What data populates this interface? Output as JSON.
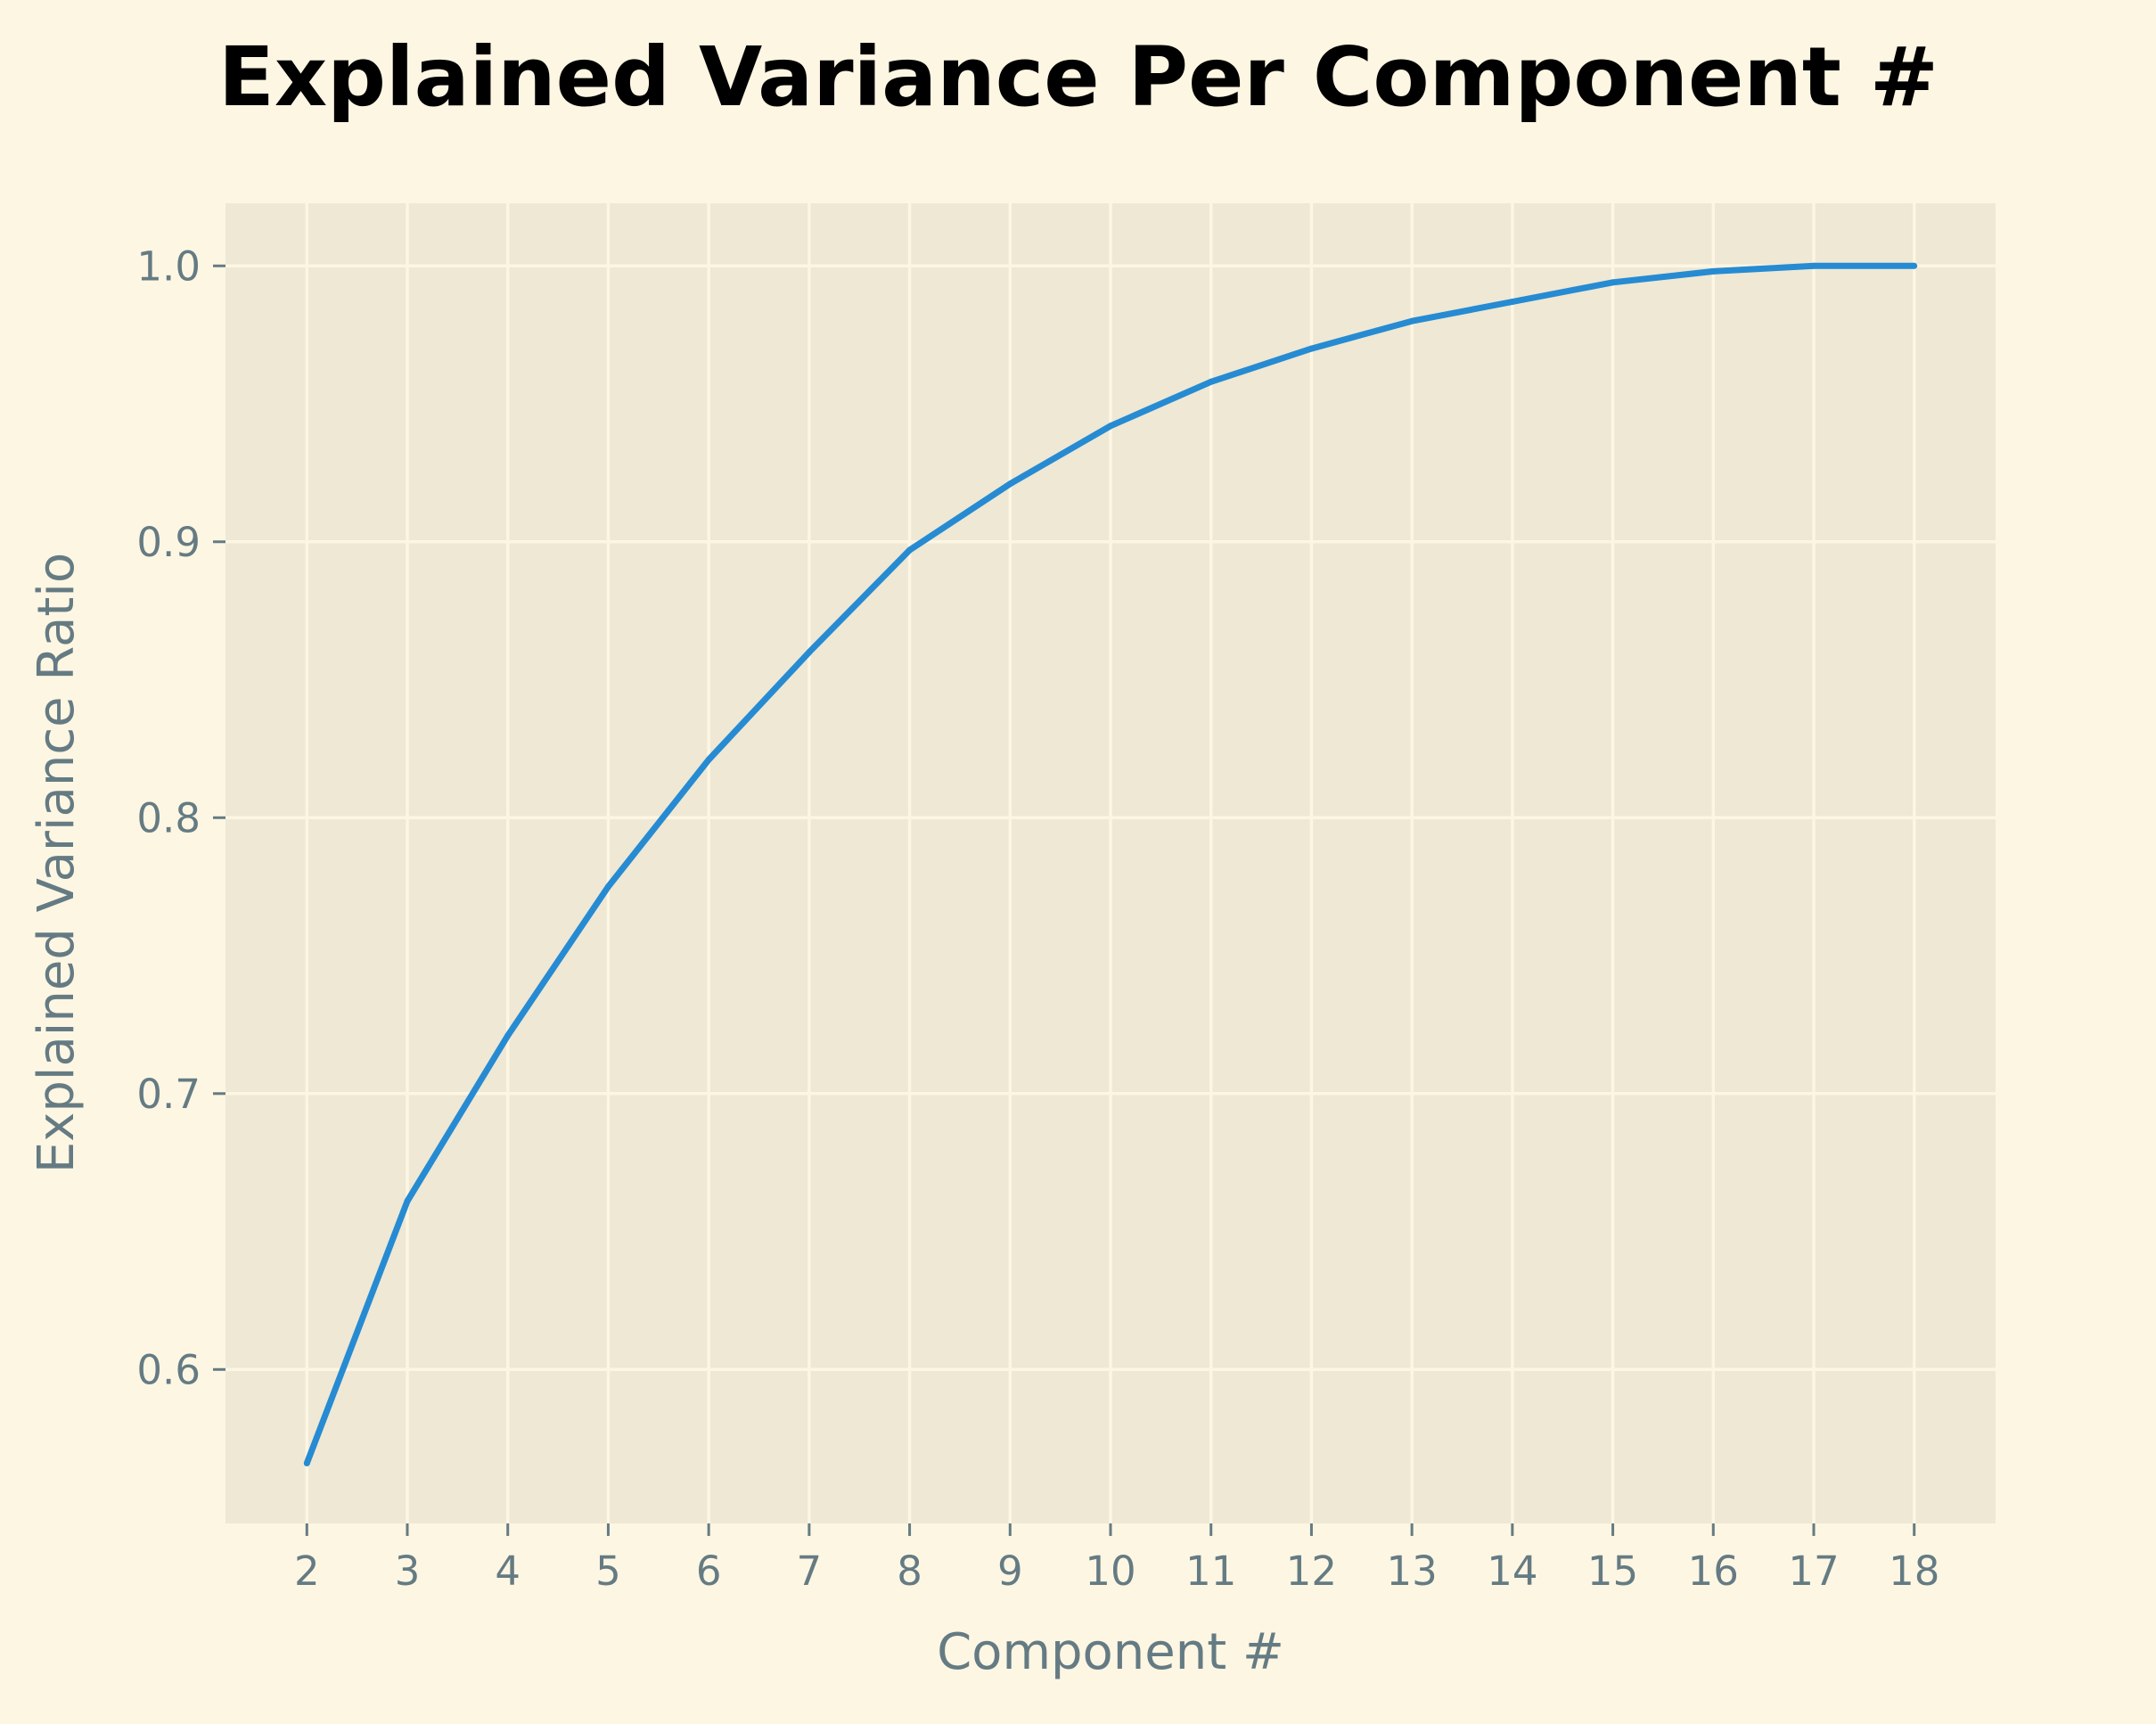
{
  "colors": {
    "background": "#fdf6e3",
    "plot_background": "#eee8d5",
    "grid": "#fdf6e3",
    "text_muted": "#657b83",
    "title": "#000000",
    "line": "#268bd2"
  },
  "chart_data": {
    "type": "line",
    "title": "Explained Variance Per Component #",
    "xlabel": "Component #",
    "ylabel": "Explained Variance Ratio",
    "x": [
      2,
      3,
      4,
      5,
      6,
      7,
      8,
      9,
      10,
      11,
      12,
      13,
      14,
      15,
      16,
      17,
      18
    ],
    "series": [
      {
        "values": [
          0.566,
          0.661,
          0.721,
          0.775,
          0.821,
          0.86,
          0.897,
          0.921,
          0.942,
          0.958,
          0.97,
          0.98,
          0.987,
          0.994,
          0.998,
          1.0,
          1.0
        ]
      }
    ],
    "x_ticks": [
      "2",
      "3",
      "4",
      "5",
      "6",
      "7",
      "8",
      "9",
      "10",
      "11",
      "12",
      "13",
      "14",
      "15",
      "16",
      "17",
      "18"
    ],
    "y_ticks": [
      "0.6",
      "0.7",
      "0.8",
      "0.9",
      "1.0"
    ],
    "xlim": [
      1.19,
      18.81
    ],
    "ylim": [
      0.5442,
      1.0227
    ],
    "grid": true,
    "legend": "none"
  }
}
